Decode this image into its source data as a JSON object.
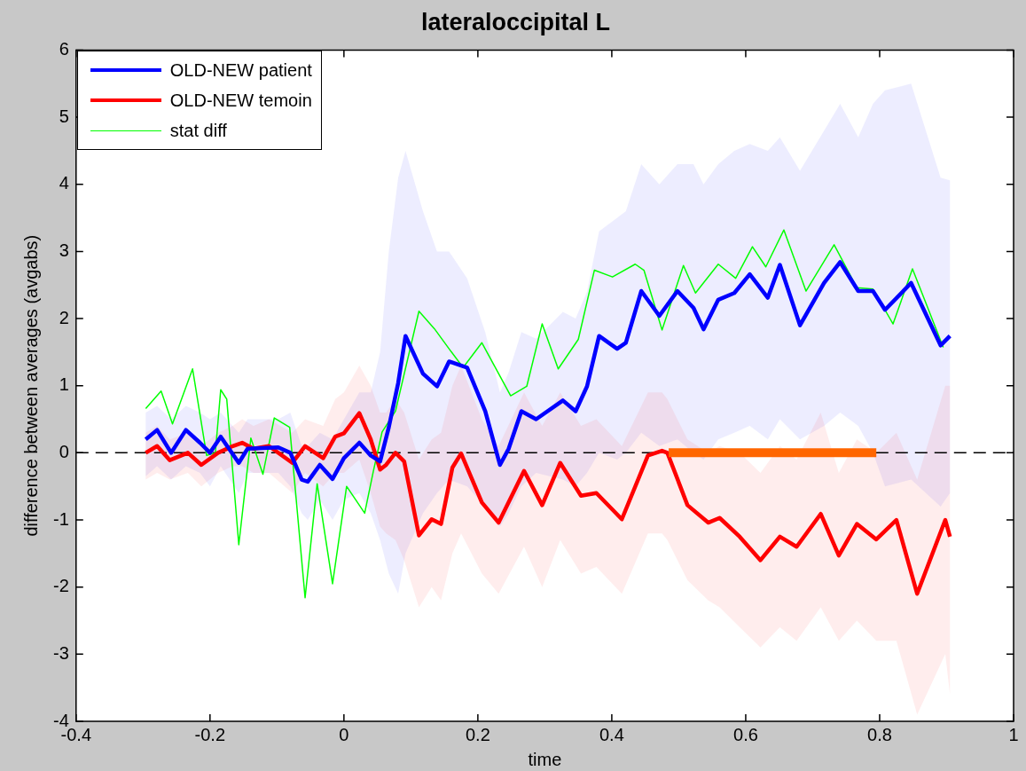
{
  "chart_data": {
    "type": "line",
    "title": "lateraloccipital L",
    "xlabel": "time",
    "ylabel": "difference between averages (avgabs)",
    "xlim": [
      -0.4,
      1
    ],
    "xticks": [
      -0.4,
      -0.2,
      0,
      0.2,
      0.4,
      0.6,
      0.8,
      1
    ],
    "ylim": [
      -4,
      6
    ],
    "yticks": [
      -4,
      -3,
      -2,
      -1,
      0,
      1,
      2,
      3,
      4,
      5,
      6
    ],
    "grid": false,
    "legend": "top left",
    "marker": "none",
    "line_style": "solid",
    "ref_lines": [
      {
        "axis": "y",
        "value": 0,
        "color": "#000000",
        "line_style": "dashed"
      }
    ],
    "series": [
      {
        "name": "OLD-NEW patient",
        "color": "#0000ff",
        "x": [
          -0.296,
          -0.279,
          -0.258,
          -0.236,
          -0.215,
          -0.2,
          -0.184,
          -0.157,
          -0.144,
          -0.098,
          -0.08,
          -0.063,
          -0.054,
          -0.036,
          -0.017,
          0,
          0.023,
          0.04,
          0.054,
          0.067,
          0.081,
          0.092,
          0.118,
          0.139,
          0.157,
          0.184,
          0.211,
          0.233,
          0.246,
          0.265,
          0.287,
          0.327,
          0.346,
          0.363,
          0.381,
          0.408,
          0.421,
          0.444,
          0.471,
          0.498,
          0.522,
          0.537,
          0.559,
          0.583,
          0.606,
          0.633,
          0.651,
          0.681,
          0.717,
          0.741,
          0.768,
          0.79,
          0.808,
          0.847,
          0.891,
          0.905
        ],
        "values": [
          0.2,
          0.34,
          0,
          0.34,
          0.15,
          0,
          0.24,
          -0.15,
          0.06,
          0.08,
          0,
          -0.4,
          -0.43,
          -0.18,
          -0.39,
          -0.08,
          0.15,
          -0.04,
          -0.13,
          0.38,
          1.04,
          1.74,
          1.18,
          0.99,
          1.36,
          1.27,
          0.62,
          -0.18,
          0.06,
          0.62,
          0.5,
          0.78,
          0.62,
          0.99,
          1.74,
          1.55,
          1.64,
          2.41,
          2.04,
          2.41,
          2.16,
          1.84,
          2.28,
          2.38,
          2.66,
          2.31,
          2.8,
          1.9,
          2.53,
          2.84,
          2.41,
          2.41,
          2.13,
          2.53,
          1.6,
          1.74
        ],
        "lower": [
          -0.35,
          -0.2,
          -0.4,
          -0.2,
          -0.3,
          -0.5,
          -0.2,
          -0.6,
          -0.3,
          -0.3,
          -0.5,
          -0.9,
          -1.0,
          -0.7,
          -1.0,
          -0.7,
          -0.6,
          -0.9,
          -1.3,
          -1.8,
          -2.1,
          -1.5,
          -0.9,
          -0.6,
          -0.4,
          -0.5,
          -0.8,
          -1.1,
          -0.9,
          -0.5,
          -0.3,
          -0.4,
          -0.5,
          -0.3,
          0,
          -0.1,
          0,
          0.3,
          0.1,
          0.2,
          0,
          -0.1,
          0.2,
          0.3,
          0.4,
          0.2,
          0.5,
          0.2,
          0.4,
          0.6,
          0.4,
          0,
          -0.5,
          -0.4,
          -0.8,
          -0.6
        ],
        "upper": [
          0.6,
          0.7,
          0.5,
          0.7,
          0.6,
          0.5,
          0.6,
          0.3,
          0.5,
          0.5,
          0.6,
          0.1,
          0.1,
          0.3,
          0.2,
          0.5,
          0.9,
          0.9,
          1.5,
          3.0,
          4.1,
          4.5,
          3.6,
          3.0,
          3.0,
          2.6,
          1.8,
          0.9,
          1.2,
          1.8,
          1.7,
          2.1,
          2.0,
          2.4,
          3.3,
          3.5,
          3.6,
          4.3,
          4.0,
          4.3,
          4.3,
          4.0,
          4.3,
          4.5,
          4.6,
          4.5,
          4.7,
          4.2,
          4.8,
          5.2,
          4.7,
          5.2,
          5.4,
          5.5,
          4.1,
          4.06
        ]
      },
      {
        "name": "OLD-NEW temoin",
        "color": "#ff0000",
        "x": [
          -0.296,
          -0.279,
          -0.26,
          -0.233,
          -0.213,
          -0.188,
          -0.166,
          -0.152,
          -0.135,
          -0.112,
          -0.077,
          -0.058,
          -0.031,
          -0.013,
          0,
          0.023,
          0.04,
          0.054,
          0.063,
          0.077,
          0.09,
          0.112,
          0.131,
          0.145,
          0.162,
          0.175,
          0.206,
          0.231,
          0.269,
          0.296,
          0.323,
          0.354,
          0.377,
          0.415,
          0.454,
          0.475,
          0.483,
          0.513,
          0.544,
          0.561,
          0.591,
          0.622,
          0.651,
          0.676,
          0.712,
          0.739,
          0.766,
          0.795,
          0.825,
          0.856,
          0.898,
          0.905
        ],
        "values": [
          0,
          0.1,
          -0.11,
          0,
          -0.18,
          0,
          0.1,
          0.15,
          0.06,
          0.1,
          -0.15,
          0.1,
          -0.08,
          0.24,
          0.29,
          0.59,
          0.2,
          -0.25,
          -0.18,
          0,
          -0.13,
          -1.23,
          -0.99,
          -1.06,
          -0.22,
          -0.01,
          -0.74,
          -1.04,
          -0.27,
          -0.78,
          -0.15,
          -0.64,
          -0.6,
          -0.99,
          -0.04,
          0.03,
          0,
          -0.78,
          -1.04,
          -0.97,
          -1.25,
          -1.6,
          -1.25,
          -1.4,
          -0.91,
          -1.53,
          -1.06,
          -1.29,
          -1.0,
          -2.1,
          -1.0,
          -1.25
        ],
        "lower": [
          -0.4,
          -0.3,
          -0.4,
          -0.3,
          -0.5,
          -0.3,
          -0.2,
          -0.2,
          -0.3,
          -0.3,
          -0.6,
          -0.3,
          -0.5,
          -0.3,
          -0.3,
          -0.1,
          -0.6,
          -1.1,
          -1.2,
          -1.3,
          -1.6,
          -2.3,
          -2.0,
          -2.2,
          -1.5,
          -1.2,
          -1.8,
          -2.1,
          -1.4,
          -2.0,
          -1.3,
          -1.8,
          -1.7,
          -2.1,
          -1.2,
          -1.2,
          -1.3,
          -1.9,
          -2.2,
          -2.3,
          -2.6,
          -2.9,
          -2.6,
          -2.8,
          -2.3,
          -2.8,
          -2.5,
          -2.8,
          -2.8,
          -3.9,
          -3.0,
          -3.6
        ],
        "upper": [
          0.3,
          0.4,
          0.2,
          0.3,
          0.1,
          0.3,
          0.4,
          0.5,
          0.4,
          0.5,
          0.3,
          0.5,
          0.4,
          0.8,
          0.9,
          1.3,
          1.0,
          0.6,
          0.6,
          0.8,
          0.6,
          -0.1,
          0.2,
          0.3,
          1.0,
          1.3,
          0.5,
          0.1,
          0.9,
          0.4,
          0.9,
          0.4,
          0.5,
          0.1,
          0.9,
          0.9,
          0.8,
          0.2,
          0,
          0.1,
          0,
          -0.3,
          0.1,
          -0.1,
          0.6,
          -0.3,
          0.2,
          0,
          0.3,
          -0.4,
          1.0,
          1.0
        ]
      },
      {
        "name": "stat diff",
        "color": "#00ff00",
        "x": [
          -0.296,
          -0.273,
          -0.256,
          -0.226,
          -0.205,
          -0.192,
          -0.184,
          -0.175,
          -0.157,
          -0.139,
          -0.121,
          -0.104,
          -0.081,
          -0.058,
          -0.04,
          -0.017,
          0.004,
          0.031,
          0.044,
          0.057,
          0.077,
          0.112,
          0.135,
          0.157,
          0.178,
          0.206,
          0.249,
          0.273,
          0.296,
          0.32,
          0.35,
          0.374,
          0.401,
          0.435,
          0.448,
          0.475,
          0.507,
          0.525,
          0.559,
          0.585,
          0.61,
          0.63,
          0.657,
          0.69,
          0.732,
          0.766,
          0.79,
          0.82,
          0.849,
          0.895
        ],
        "values": [
          0.66,
          0.92,
          0.43,
          1.25,
          -0.04,
          0,
          0.94,
          0.8,
          -1.37,
          0.22,
          -0.32,
          0.52,
          0.38,
          -2.16,
          -0.46,
          -1.95,
          -0.5,
          -0.9,
          -0.27,
          0.31,
          0.62,
          2.11,
          1.85,
          1.55,
          1.27,
          1.64,
          0.85,
          0.99,
          1.92,
          1.25,
          1.69,
          2.72,
          2.62,
          2.81,
          2.72,
          1.83,
          2.79,
          2.38,
          2.81,
          2.6,
          3.07,
          2.77,
          3.32,
          2.41,
          3.1,
          2.46,
          2.44,
          1.92,
          2.74,
          1.57
        ]
      },
      {
        "type": "line",
        "color": "#ff6600",
        "x": [
          0.485,
          0.795
        ],
        "values": [
          0,
          0
        ]
      }
    ]
  }
}
